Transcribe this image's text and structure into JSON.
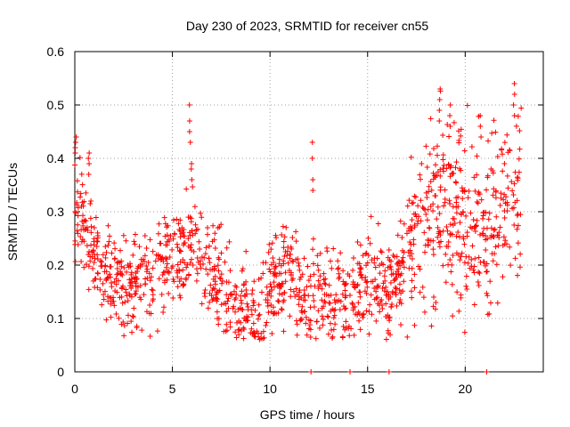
{
  "chart_data": {
    "type": "scatter",
    "title": "Day 230 of 2023, SRMTID for receiver cn55",
    "xlabel": "GPS time / hours",
    "ylabel": "SRMTID / TECUs",
    "xlim": [
      0,
      24
    ],
    "ylim": [
      0,
      0.6
    ],
    "xticks": [
      0,
      5,
      10,
      15,
      20
    ],
    "xtick_labels": [
      "0",
      "5",
      "10",
      "15",
      "20"
    ],
    "yticks": [
      0,
      0.1,
      0.2,
      0.3,
      0.4,
      0.5,
      0.6
    ],
    "ytick_labels": [
      "0",
      "0.1",
      "0.2",
      "0.3",
      "0.4",
      "0.5",
      "0.6"
    ],
    "grid": true,
    "marker": "plus",
    "color": "#ff0000",
    "series": [
      {
        "name": "SRMTID",
        "trend": [
          [
            0.0,
            0.3
          ],
          [
            0.5,
            0.27
          ],
          [
            1.0,
            0.22
          ],
          [
            1.5,
            0.19
          ],
          [
            2.0,
            0.17
          ],
          [
            2.5,
            0.16
          ],
          [
            3.0,
            0.17
          ],
          [
            3.5,
            0.17
          ],
          [
            4.0,
            0.15
          ],
          [
            4.5,
            0.19
          ],
          [
            5.0,
            0.23
          ],
          [
            5.5,
            0.22
          ],
          [
            6.0,
            0.25
          ],
          [
            6.5,
            0.22
          ],
          [
            7.0,
            0.2
          ],
          [
            7.5,
            0.17
          ],
          [
            8.0,
            0.14
          ],
          [
            8.5,
            0.11
          ],
          [
            9.0,
            0.1
          ],
          [
            9.5,
            0.11
          ],
          [
            10.0,
            0.15
          ],
          [
            10.5,
            0.18
          ],
          [
            11.0,
            0.2
          ],
          [
            11.5,
            0.15
          ],
          [
            12.0,
            0.12
          ],
          [
            12.5,
            0.16
          ],
          [
            13.0,
            0.13
          ],
          [
            13.5,
            0.14
          ],
          [
            14.0,
            0.14
          ],
          [
            14.5,
            0.16
          ],
          [
            15.0,
            0.17
          ],
          [
            15.5,
            0.17
          ],
          [
            16.0,
            0.16
          ],
          [
            16.5,
            0.18
          ],
          [
            17.0,
            0.21
          ],
          [
            17.5,
            0.26
          ],
          [
            18.0,
            0.28
          ],
          [
            18.5,
            0.31
          ],
          [
            19.0,
            0.32
          ],
          [
            19.5,
            0.3
          ],
          [
            20.0,
            0.28
          ],
          [
            20.5,
            0.27
          ],
          [
            21.0,
            0.25
          ],
          [
            21.5,
            0.3
          ],
          [
            22.0,
            0.33
          ],
          [
            22.5,
            0.34
          ],
          [
            22.9,
            0.34
          ]
        ],
        "spikes": [
          {
            "x": 0.05,
            "ys": [
              0.44,
              0.43,
              0.42,
              0.41
            ]
          },
          {
            "x": 0.7,
            "ys": [
              0.41,
              0.4,
              0.39,
              0.37
            ]
          },
          {
            "x": 5.9,
            "ys": [
              0.5,
              0.47,
              0.45,
              0.43
            ]
          },
          {
            "x": 6.0,
            "ys": [
              0.39,
              0.38,
              0.36
            ]
          },
          {
            "x": 12.2,
            "ys": [
              0.43,
              0.4,
              0.36,
              0.34
            ]
          },
          {
            "x": 18.7,
            "ys": [
              0.53,
              0.51,
              0.49,
              0.47
            ]
          },
          {
            "x": 19.2,
            "ys": [
              0.5,
              0.48,
              0.46
            ]
          },
          {
            "x": 20.8,
            "ys": [
              0.48,
              0.46,
              0.44
            ]
          },
          {
            "x": 22.5,
            "ys": [
              0.54,
              0.52,
              0.5,
              0.48
            ]
          }
        ],
        "zeros": [
          12.1,
          14.1,
          16.1,
          21.1
        ]
      }
    ]
  }
}
